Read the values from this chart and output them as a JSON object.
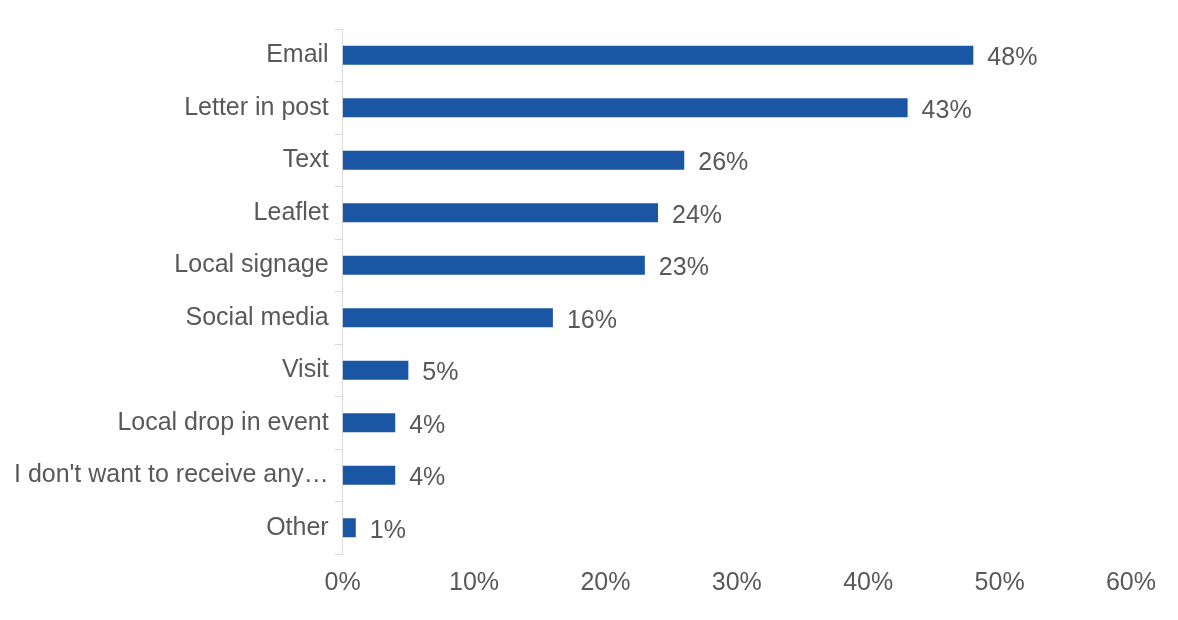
{
  "chart_data": {
    "type": "bar",
    "orientation": "horizontal",
    "categories": [
      "Email",
      "Letter in post",
      "Text",
      "Leaflet",
      "Local signage",
      "Social media",
      "Visit",
      "Local drop in event",
      "I don't want to receive any…",
      "Other"
    ],
    "values": [
      48,
      43,
      26,
      24,
      23,
      16,
      5,
      4,
      4,
      1
    ],
    "value_labels": [
      "48%",
      "43%",
      "26%",
      "24%",
      "23%",
      "16%",
      "5%",
      "4%",
      "4%",
      "1%"
    ],
    "color": "#1a56a4",
    "xlim": [
      0,
      60
    ],
    "xticks": [
      {
        "value": 0,
        "label": "0%"
      },
      {
        "value": 10,
        "label": "10%"
      },
      {
        "value": 20,
        "label": "20%"
      },
      {
        "value": 30,
        "label": "30%"
      },
      {
        "value": 40,
        "label": "40%"
      },
      {
        "value": 50,
        "label": "50%"
      },
      {
        "value": 60,
        "label": "60%"
      }
    ]
  }
}
